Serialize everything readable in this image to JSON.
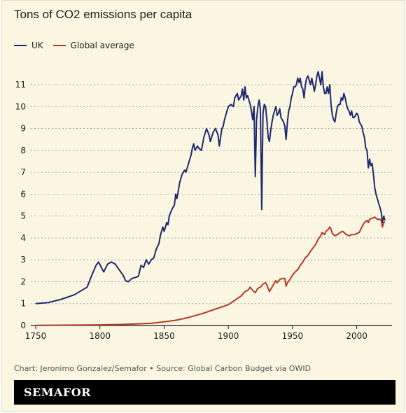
{
  "title": "Tons of CO2 emissions per capita",
  "legend": [
    {
      "name": "UK",
      "color": "#1c2a6e"
    },
    {
      "name": "Global average",
      "color": "#b33a28"
    }
  ],
  "source": "Chart: Jeronimo Gonzalez/Semafor • Source: Global Carbon Budget via OWID",
  "brand": "SEMAFOR",
  "colors": {
    "background": "#fbf6e2",
    "grid": "#9a9a9a",
    "uk": "#1c2a6e",
    "global": "#b33a28"
  },
  "chart_data": {
    "type": "line",
    "title": "Tons of CO2 emissions per capita",
    "xlim": [
      1750,
      2022
    ],
    "ylim": [
      0,
      11.8
    ],
    "x_ticks": [
      1750,
      1800,
      1850,
      1900,
      1950,
      2000
    ],
    "y_ticks": [
      0,
      1,
      2,
      3,
      4,
      5,
      6,
      7,
      8,
      9,
      10,
      11
    ],
    "grid": "horizontal dashed",
    "legend_position": "top-left",
    "series": [
      {
        "name": "UK",
        "color": "#1c2a6e",
        "points": [
          [
            1750,
            1.0
          ],
          [
            1760,
            1.05
          ],
          [
            1770,
            1.2
          ],
          [
            1780,
            1.4
          ],
          [
            1790,
            1.75
          ],
          [
            1793,
            2.2
          ],
          [
            1797,
            2.75
          ],
          [
            1799,
            2.9
          ],
          [
            1802,
            2.55
          ],
          [
            1803,
            2.45
          ],
          [
            1806,
            2.8
          ],
          [
            1809,
            2.9
          ],
          [
            1812,
            2.8
          ],
          [
            1815,
            2.55
          ],
          [
            1818,
            2.3
          ],
          [
            1820,
            2.05
          ],
          [
            1822,
            2.0
          ],
          [
            1825,
            2.15
          ],
          [
            1828,
            2.2
          ],
          [
            1830,
            2.25
          ],
          [
            1832,
            2.75
          ],
          [
            1834,
            2.65
          ],
          [
            1836,
            3.0
          ],
          [
            1838,
            2.8
          ],
          [
            1840,
            3.0
          ],
          [
            1842,
            3.1
          ],
          [
            1844,
            3.5
          ],
          [
            1846,
            3.75
          ],
          [
            1847,
            4.1
          ],
          [
            1849,
            4.5
          ],
          [
            1850,
            4.3
          ],
          [
            1852,
            4.7
          ],
          [
            1853,
            4.6
          ],
          [
            1854,
            5.0
          ],
          [
            1856,
            5.3
          ],
          [
            1858,
            5.5
          ],
          [
            1859,
            6.0
          ],
          [
            1860,
            5.8
          ],
          [
            1862,
            6.5
          ],
          [
            1864,
            6.9
          ],
          [
            1866,
            7.1
          ],
          [
            1867,
            7.0
          ],
          [
            1869,
            7.4
          ],
          [
            1871,
            7.8
          ],
          [
            1872,
            8.1
          ],
          [
            1873,
            8.3
          ],
          [
            1874,
            8.0
          ],
          [
            1876,
            8.2
          ],
          [
            1877,
            8.1
          ],
          [
            1879,
            8.0
          ],
          [
            1881,
            8.6
          ],
          [
            1883,
            9.0
          ],
          [
            1885,
            8.7
          ],
          [
            1886,
            8.4
          ],
          [
            1888,
            8.8
          ],
          [
            1890,
            9.0
          ],
          [
            1892,
            8.7
          ],
          [
            1893,
            8.2
          ],
          [
            1895,
            9.0
          ],
          [
            1896,
            9.1
          ],
          [
            1897,
            9.4
          ],
          [
            1899,
            9.8
          ],
          [
            1900,
            10.0
          ],
          [
            1902,
            10.1
          ],
          [
            1904,
            10.0
          ],
          [
            1905,
            10.4
          ],
          [
            1907,
            10.6
          ],
          [
            1908,
            10.3
          ],
          [
            1910,
            10.5
          ],
          [
            1911,
            10.8
          ],
          [
            1912,
            10.3
          ],
          [
            1913,
            10.9
          ],
          [
            1914,
            10.4
          ],
          [
            1915,
            10.5
          ],
          [
            1916,
            10.3
          ],
          [
            1917,
            10.1
          ],
          [
            1918,
            9.8
          ],
          [
            1919,
            9.4
          ],
          [
            1920,
            10.0
          ],
          [
            1921,
            6.8
          ],
          [
            1922,
            9.4
          ],
          [
            1923,
            10.0
          ],
          [
            1924,
            10.3
          ],
          [
            1925,
            9.9
          ],
          [
            1926,
            5.3
          ],
          [
            1927,
            9.7
          ],
          [
            1928,
            10.1
          ],
          [
            1929,
            10.0
          ],
          [
            1930,
            9.4
          ],
          [
            1931,
            8.6
          ],
          [
            1932,
            8.4
          ],
          [
            1933,
            8.9
          ],
          [
            1934,
            9.3
          ],
          [
            1935,
            9.6
          ],
          [
            1936,
            9.8
          ],
          [
            1937,
            10.0
          ],
          [
            1938,
            9.6
          ],
          [
            1939,
            9.7
          ],
          [
            1940,
            9.9
          ],
          [
            1941,
            9.5
          ],
          [
            1942,
            9.4
          ],
          [
            1943,
            9.3
          ],
          [
            1944,
            9.1
          ],
          [
            1945,
            8.5
          ],
          [
            1946,
            9.3
          ],
          [
            1947,
            9.8
          ],
          [
            1948,
            10.0
          ],
          [
            1949,
            10.4
          ],
          [
            1950,
            10.6
          ],
          [
            1951,
            10.9
          ],
          [
            1952,
            10.9
          ],
          [
            1953,
            11.0
          ],
          [
            1954,
            11.3
          ],
          [
            1955,
            11.1
          ],
          [
            1956,
            11.3
          ],
          [
            1957,
            10.9
          ],
          [
            1958,
            10.8
          ],
          [
            1959,
            10.4
          ],
          [
            1960,
            11.0
          ],
          [
            1961,
            11.3
          ],
          [
            1962,
            11.4
          ],
          [
            1963,
            11.2
          ],
          [
            1964,
            11.0
          ],
          [
            1965,
            11.3
          ],
          [
            1966,
            11.0
          ],
          [
            1967,
            10.7
          ],
          [
            1968,
            11.0
          ],
          [
            1969,
            11.4
          ],
          [
            1970,
            11.6
          ],
          [
            1971,
            11.3
          ],
          [
            1972,
            11.0
          ],
          [
            1973,
            11.6
          ],
          [
            1974,
            10.9
          ],
          [
            1975,
            10.6
          ],
          [
            1976,
            10.6
          ],
          [
            1977,
            10.9
          ],
          [
            1978,
            10.6
          ],
          [
            1979,
            11.0
          ],
          [
            1980,
            10.1
          ],
          [
            1981,
            9.6
          ],
          [
            1982,
            9.4
          ],
          [
            1983,
            9.3
          ],
          [
            1984,
            9.7
          ],
          [
            1985,
            10.0
          ],
          [
            1986,
            10.1
          ],
          [
            1987,
            10.1
          ],
          [
            1988,
            10.4
          ],
          [
            1989,
            10.3
          ],
          [
            1990,
            10.6
          ],
          [
            1991,
            10.4
          ],
          [
            1992,
            10.1
          ],
          [
            1993,
            9.9
          ],
          [
            1994,
            9.8
          ],
          [
            1995,
            9.6
          ],
          [
            1996,
            9.8
          ],
          [
            1997,
            9.5
          ],
          [
            1998,
            9.5
          ],
          [
            1999,
            9.6
          ],
          [
            2000,
            9.7
          ],
          [
            2001,
            9.6
          ],
          [
            2002,
            9.3
          ],
          [
            2003,
            9.2
          ],
          [
            2004,
            9.1
          ],
          [
            2005,
            8.8
          ],
          [
            2006,
            8.6
          ],
          [
            2007,
            8.1
          ],
          [
            2008,
            8.0
          ],
          [
            2009,
            7.2
          ],
          [
            2010,
            7.6
          ],
          [
            2011,
            7.3
          ],
          [
            2012,
            7.4
          ],
          [
            2013,
            6.9
          ],
          [
            2014,
            6.3
          ],
          [
            2015,
            6.0
          ],
          [
            2016,
            5.8
          ],
          [
            2017,
            5.6
          ],
          [
            2018,
            5.4
          ],
          [
            2019,
            5.2
          ],
          [
            2020,
            4.7
          ],
          [
            2021,
            5.0
          ],
          [
            2022,
            4.8
          ]
        ]
      },
      {
        "name": "Global average",
        "color": "#b33a28",
        "points": [
          [
            1750,
            0.01
          ],
          [
            1800,
            0.03
          ],
          [
            1820,
            0.05
          ],
          [
            1840,
            0.1
          ],
          [
            1850,
            0.17
          ],
          [
            1860,
            0.25
          ],
          [
            1870,
            0.38
          ],
          [
            1880,
            0.55
          ],
          [
            1890,
            0.75
          ],
          [
            1900,
            0.95
          ],
          [
            1905,
            1.15
          ],
          [
            1910,
            1.35
          ],
          [
            1913,
            1.55
          ],
          [
            1915,
            1.6
          ],
          [
            1917,
            1.75
          ],
          [
            1919,
            1.6
          ],
          [
            1921,
            1.5
          ],
          [
            1923,
            1.7
          ],
          [
            1925,
            1.75
          ],
          [
            1927,
            1.9
          ],
          [
            1929,
            1.95
          ],
          [
            1930,
            1.85
          ],
          [
            1932,
            1.55
          ],
          [
            1934,
            1.75
          ],
          [
            1936,
            1.95
          ],
          [
            1937,
            2.05
          ],
          [
            1938,
            1.95
          ],
          [
            1940,
            2.1
          ],
          [
            1942,
            2.15
          ],
          [
            1944,
            2.15
          ],
          [
            1945,
            1.8
          ],
          [
            1946,
            1.95
          ],
          [
            1948,
            2.1
          ],
          [
            1950,
            2.3
          ],
          [
            1952,
            2.45
          ],
          [
            1954,
            2.55
          ],
          [
            1956,
            2.75
          ],
          [
            1958,
            2.9
          ],
          [
            1960,
            3.1
          ],
          [
            1962,
            3.2
          ],
          [
            1964,
            3.4
          ],
          [
            1966,
            3.55
          ],
          [
            1968,
            3.7
          ],
          [
            1970,
            3.95
          ],
          [
            1972,
            4.1
          ],
          [
            1973,
            4.25
          ],
          [
            1975,
            4.15
          ],
          [
            1976,
            4.3
          ],
          [
            1978,
            4.4
          ],
          [
            1979,
            4.5
          ],
          [
            1980,
            4.4
          ],
          [
            1981,
            4.2
          ],
          [
            1983,
            4.1
          ],
          [
            1985,
            4.15
          ],
          [
            1987,
            4.25
          ],
          [
            1989,
            4.3
          ],
          [
            1990,
            4.25
          ],
          [
            1992,
            4.15
          ],
          [
            1994,
            4.1
          ],
          [
            1996,
            4.15
          ],
          [
            1998,
            4.15
          ],
          [
            2000,
            4.2
          ],
          [
            2002,
            4.25
          ],
          [
            2004,
            4.5
          ],
          [
            2006,
            4.7
          ],
          [
            2008,
            4.8
          ],
          [
            2009,
            4.7
          ],
          [
            2010,
            4.85
          ],
          [
            2012,
            4.9
          ],
          [
            2014,
            4.95
          ],
          [
            2016,
            4.85
          ],
          [
            2018,
            4.85
          ],
          [
            2019,
            4.8
          ],
          [
            2020,
            4.5
          ],
          [
            2021,
            4.7
          ],
          [
            2022,
            4.75
          ]
        ]
      }
    ]
  }
}
